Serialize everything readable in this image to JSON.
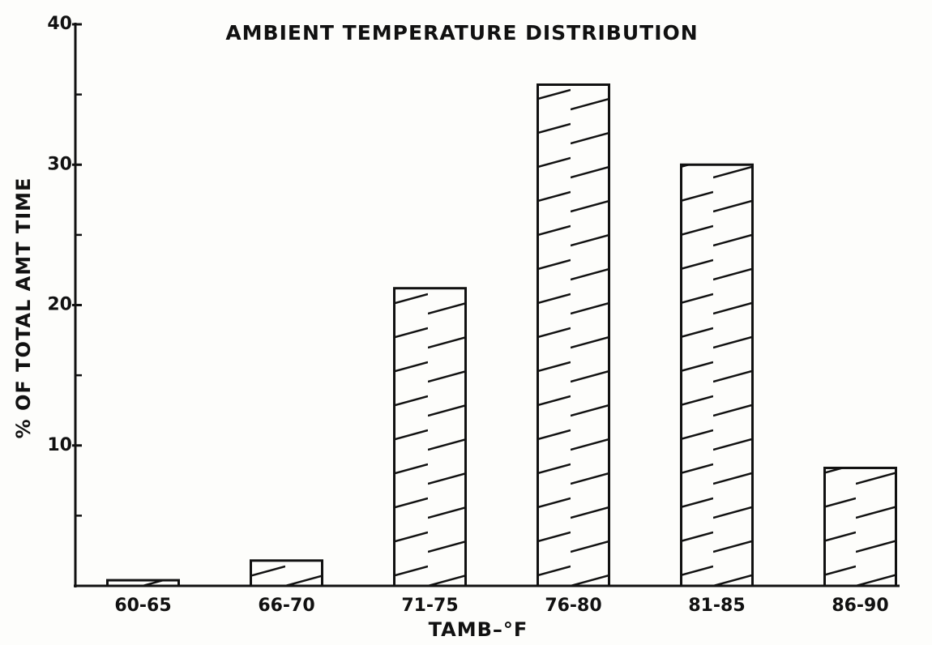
{
  "chart_data": {
    "type": "bar",
    "title": "AMBIENT TEMPERATURE DISTRIBUTION",
    "x_label": "TAMB–°F",
    "y_label": "% OF TOTAL AMT TIME",
    "categories": [
      "60-65",
      "66-70",
      "71-75",
      "76-80",
      "81-85",
      "86-90"
    ],
    "values": [
      0.4,
      1.8,
      21.2,
      35.7,
      30,
      8.4
    ],
    "color": "#111111",
    "ylim": [
      0,
      40
    ],
    "yticks": [
      10,
      20,
      30,
      40
    ],
    "minor_yticks": [
      5,
      15,
      25,
      35
    ],
    "grid": false
  }
}
